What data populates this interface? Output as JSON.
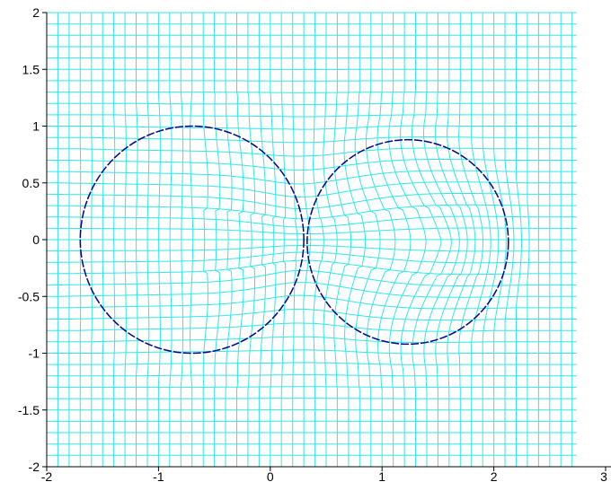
{
  "chart_data": {
    "type": "line",
    "title": "",
    "xlabel": "",
    "ylabel": "",
    "xlim": [
      -2,
      3
    ],
    "ylim": [
      -2,
      2
    ],
    "x_ticks": [
      -2,
      -1,
      0,
      1,
      2,
      3
    ],
    "y_ticks": [
      -2,
      -1.5,
      -1,
      -0.5,
      0,
      0.5,
      1,
      1.5,
      2
    ],
    "x_tick_labels": [
      "-2",
      "-1",
      "0",
      "1",
      "2",
      "3"
    ],
    "y_tick_labels": [
      "-2",
      "-1.5",
      "-1",
      "-0.5",
      "0",
      "0.5",
      "1",
      "1.5",
      "2"
    ],
    "grid": false,
    "series": [
      {
        "type": "deformed-mesh",
        "color": "#33e6e6",
        "x_range": [
          -2,
          3
        ],
        "y_range": [
          -2,
          2
        ],
        "step": 0.1,
        "mesh_x_limit": 2.75
      },
      {
        "type": "circle",
        "color": "#00008b",
        "style": "dashed",
        "center": [
          -0.7,
          0
        ],
        "radius": 1.0
      },
      {
        "type": "circle",
        "color": "#00008b",
        "style": "dashed",
        "center": [
          1.23,
          -0.02
        ],
        "radius": 0.9
      }
    ]
  },
  "colors": {
    "mesh": "#33e6e6",
    "circle": "#00008b",
    "axis": "#000000",
    "background": "#ffffff"
  }
}
